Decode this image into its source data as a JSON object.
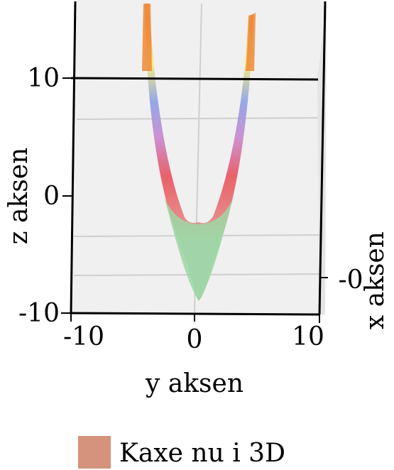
{
  "chart_data": {
    "type": "surface",
    "surface": "z = x^2 + y^2 - 10",
    "xlabel": "x aksen",
    "ylabel": "y aksen",
    "zlabel": "z aksen",
    "y_ticks": [
      "-10",
      "0",
      "10"
    ],
    "z_ticks": [
      "10",
      "0",
      "-10"
    ],
    "x_ticks": [
      "-0"
    ],
    "ylim": [
      -10,
      10
    ],
    "zlim": [
      -10,
      15
    ],
    "grid": true,
    "legend": {
      "placement": "bottom",
      "label": "Kaxe nu i 3D",
      "swatch_color": "#d4937a"
    },
    "colors": {
      "pane_back": "#f0f0f0",
      "pane_side": "#e6e6e6",
      "green": "#9fd6a6",
      "red": "#e8575f",
      "blue": "#8ea2e8",
      "yellow": "#f3ef7a",
      "orange": "#ee8a3a"
    }
  }
}
